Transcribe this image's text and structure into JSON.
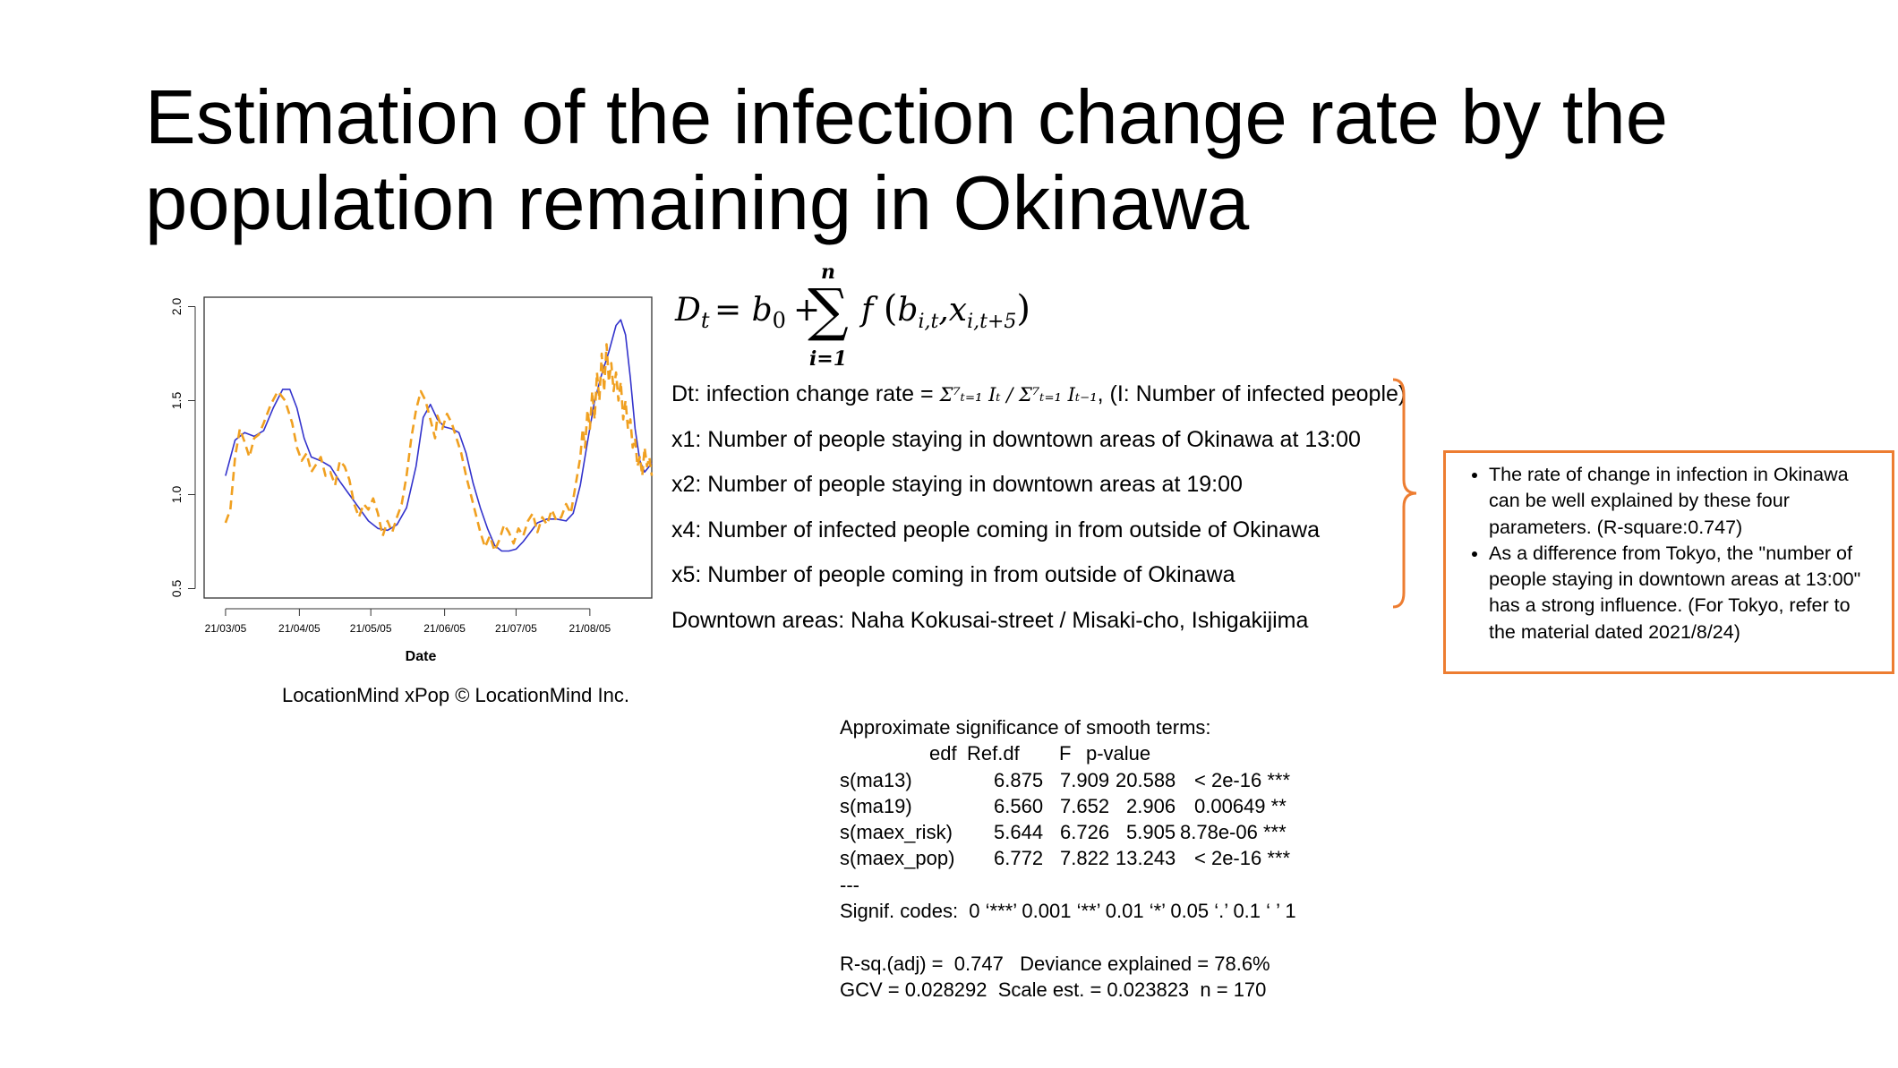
{
  "title": {
    "line1": "Estimation of the infection change rate by the",
    "line2": "population remaining in Okinawa"
  },
  "chart_data": {
    "type": "line",
    "xlabel": "Date",
    "ylabel": "",
    "x_ticks": [
      "21/03/05",
      "21/04/05",
      "21/05/05",
      "21/06/05",
      "21/07/05",
      "21/08/05"
    ],
    "y_ticks": [
      "0.5",
      "1.0",
      "1.5",
      "2.0"
    ],
    "ylim": [
      0.45,
      2.05
    ],
    "xlim": [
      "21/02/24",
      "21/08/31"
    ],
    "grid": false,
    "series": [
      {
        "style": "solid",
        "color": "#3333CC",
        "points": [
          [
            "21/03/05",
            1.1
          ],
          [
            "21/03/09",
            1.29
          ],
          [
            "21/03/13",
            1.33
          ],
          [
            "21/03/17",
            1.31
          ],
          [
            "21/03/21",
            1.34
          ],
          [
            "21/03/25",
            1.46
          ],
          [
            "21/03/29",
            1.56
          ],
          [
            "21/04/01",
            1.56
          ],
          [
            "21/04/04",
            1.46
          ],
          [
            "21/04/07",
            1.3
          ],
          [
            "21/04/10",
            1.2
          ],
          [
            "21/04/14",
            1.18
          ],
          [
            "21/04/18",
            1.15
          ],
          [
            "21/04/22",
            1.07
          ],
          [
            "21/04/26",
            1.0
          ],
          [
            "21/04/30",
            0.93
          ],
          [
            "21/05/04",
            0.86
          ],
          [
            "21/05/08",
            0.82
          ],
          [
            "21/05/12",
            0.81
          ],
          [
            "21/05/16",
            0.84
          ],
          [
            "21/05/20",
            0.93
          ],
          [
            "21/05/24",
            1.15
          ],
          [
            "21/05/27",
            1.41
          ],
          [
            "21/05/30",
            1.48
          ],
          [
            "21/06/02",
            1.4
          ],
          [
            "21/06/05",
            1.36
          ],
          [
            "21/06/08",
            1.35
          ],
          [
            "21/06/11",
            1.33
          ],
          [
            "21/06/14",
            1.22
          ],
          [
            "21/06/17",
            1.06
          ],
          [
            "21/06/20",
            0.93
          ],
          [
            "21/06/23",
            0.82
          ],
          [
            "21/06/26",
            0.73
          ],
          [
            "21/06/29",
            0.7
          ],
          [
            "21/07/02",
            0.7
          ],
          [
            "21/07/05",
            0.71
          ],
          [
            "21/07/08",
            0.75
          ],
          [
            "21/07/11",
            0.8
          ],
          [
            "21/07/14",
            0.85
          ],
          [
            "21/07/18",
            0.87
          ],
          [
            "21/07/22",
            0.87
          ],
          [
            "21/07/26",
            0.86
          ],
          [
            "21/07/29",
            0.9
          ],
          [
            "21/08/01",
            1.05
          ],
          [
            "21/08/04",
            1.28
          ],
          [
            "21/08/07",
            1.5
          ],
          [
            "21/08/10",
            1.64
          ],
          [
            "21/08/13",
            1.76
          ],
          [
            "21/08/16",
            1.9
          ],
          [
            "21/08/18",
            1.93
          ],
          [
            "21/08/20",
            1.85
          ],
          [
            "21/08/22",
            1.62
          ],
          [
            "21/08/24",
            1.35
          ],
          [
            "21/08/26",
            1.18
          ],
          [
            "21/08/28",
            1.12
          ],
          [
            "21/08/30",
            1.15
          ],
          [
            "21/08/31",
            1.17
          ]
        ]
      },
      {
        "style": "dashed",
        "color": "#F0A020",
        "points": [
          [
            "21/03/05",
            0.85
          ],
          [
            "21/03/07",
            0.92
          ],
          [
            "21/03/09",
            1.2
          ],
          [
            "21/03/11",
            1.35
          ],
          [
            "21/03/13",
            1.28
          ],
          [
            "21/03/15",
            1.2
          ],
          [
            "21/03/17",
            1.3
          ],
          [
            "21/03/19",
            1.32
          ],
          [
            "21/03/21",
            1.38
          ],
          [
            "21/03/24",
            1.48
          ],
          [
            "21/03/27",
            1.55
          ],
          [
            "21/03/30",
            1.5
          ],
          [
            "21/04/02",
            1.38
          ],
          [
            "21/04/04",
            1.25
          ],
          [
            "21/04/06",
            1.18
          ],
          [
            "21/04/08",
            1.22
          ],
          [
            "21/04/10",
            1.12
          ],
          [
            "21/04/12",
            1.16
          ],
          [
            "21/04/14",
            1.2
          ],
          [
            "21/04/16",
            1.1
          ],
          [
            "21/04/18",
            1.12
          ],
          [
            "21/04/20",
            1.05
          ],
          [
            "21/04/22",
            1.18
          ],
          [
            "21/04/24",
            1.15
          ],
          [
            "21/04/26",
            1.08
          ],
          [
            "21/04/28",
            0.95
          ],
          [
            "21/04/30",
            0.88
          ],
          [
            "21/05/02",
            0.95
          ],
          [
            "21/05/04",
            0.92
          ],
          [
            "21/05/06",
            0.98
          ],
          [
            "21/05/08",
            0.9
          ],
          [
            "21/05/10",
            0.78
          ],
          [
            "21/05/12",
            0.86
          ],
          [
            "21/05/14",
            0.8
          ],
          [
            "21/05/16",
            0.88
          ],
          [
            "21/05/18",
            0.95
          ],
          [
            "21/05/20",
            1.1
          ],
          [
            "21/05/22",
            1.3
          ],
          [
            "21/05/24",
            1.45
          ],
          [
            "21/05/26",
            1.55
          ],
          [
            "21/05/28",
            1.5
          ],
          [
            "21/05/30",
            1.4
          ],
          [
            "21/06/01",
            1.3
          ],
          [
            "21/06/02",
            1.42
          ],
          [
            "21/06/04",
            1.35
          ],
          [
            "21/06/06",
            1.43
          ],
          [
            "21/06/08",
            1.38
          ],
          [
            "21/06/10",
            1.3
          ],
          [
            "21/06/12",
            1.22
          ],
          [
            "21/06/14",
            1.1
          ],
          [
            "21/06/16",
            1.0
          ],
          [
            "21/06/18",
            0.9
          ],
          [
            "21/06/20",
            0.8
          ],
          [
            "21/06/22",
            0.72
          ],
          [
            "21/06/24",
            0.78
          ],
          [
            "21/06/26",
            0.7
          ],
          [
            "21/06/28",
            0.76
          ],
          [
            "21/06/30",
            0.84
          ],
          [
            "21/07/02",
            0.8
          ],
          [
            "21/07/04",
            0.74
          ],
          [
            "21/07/06",
            0.82
          ],
          [
            "21/07/08",
            0.78
          ],
          [
            "21/07/10",
            0.86
          ],
          [
            "21/07/12",
            0.9
          ],
          [
            "21/07/14",
            0.8
          ],
          [
            "21/07/16",
            0.88
          ],
          [
            "21/07/18",
            0.84
          ],
          [
            "21/07/20",
            0.92
          ],
          [
            "21/07/22",
            0.86
          ],
          [
            "21/07/24",
            0.88
          ],
          [
            "21/07/26",
            0.95
          ],
          [
            "21/07/28",
            0.9
          ],
          [
            "21/07/30",
            1.05
          ],
          [
            "21/08/01",
            1.2
          ],
          [
            "21/08/02",
            1.35
          ],
          [
            "21/08/03",
            1.25
          ],
          [
            "21/08/04",
            1.45
          ],
          [
            "21/08/05",
            1.35
          ],
          [
            "21/08/06",
            1.55
          ],
          [
            "21/08/07",
            1.4
          ],
          [
            "21/08/08",
            1.65
          ],
          [
            "21/08/09",
            1.5
          ],
          [
            "21/08/10",
            1.75
          ],
          [
            "21/08/11",
            1.55
          ],
          [
            "21/08/12",
            1.8
          ],
          [
            "21/08/13",
            1.6
          ],
          [
            "21/08/14",
            1.7
          ],
          [
            "21/08/15",
            1.55
          ],
          [
            "21/08/16",
            1.65
          ],
          [
            "21/08/17",
            1.5
          ],
          [
            "21/08/18",
            1.6
          ],
          [
            "21/08/19",
            1.4
          ],
          [
            "21/08/20",
            1.5
          ],
          [
            "21/08/21",
            1.35
          ],
          [
            "21/08/22",
            1.4
          ],
          [
            "21/08/23",
            1.25
          ],
          [
            "21/08/24",
            1.3
          ],
          [
            "21/08/25",
            1.15
          ],
          [
            "21/08/26",
            1.2
          ],
          [
            "21/08/27",
            1.1
          ],
          [
            "21/08/28",
            1.25
          ],
          [
            "21/08/29",
            1.15
          ],
          [
            "21/08/30",
            1.2
          ],
          [
            "21/08/31",
            1.1
          ]
        ]
      }
    ]
  },
  "credit": "LocationMind xPop © LocationMind Inc.",
  "formula": {
    "lhs": "D",
    "lhs_sub": "t",
    "eq": "= b",
    "b_sub": "0",
    "plus": "+",
    "sum_top": "n",
    "sum_bottom": "i=1",
    "func": "f",
    "arg1": "b",
    "arg1_sub": "i,t",
    "comma": ",",
    "arg2": "x",
    "arg2_sub": "i,t+5"
  },
  "vars": {
    "dt_prefix": "Dt: infection change rate = ",
    "dt_inline": "Σ⁷ₜ₌₁ Iₜ / Σ⁷ₜ₌₁ Iₜ₋₁",
    "dt_suffix": ", (I: Number of infected people)",
    "x1": "x1: Number of people staying in downtown areas of Okinawa at 13:00",
    "x2": "x2: Number of people staying in downtown areas at 19:00",
    "x4": "x4: Number of infected people coming in from outside of Okinawa",
    "x5": "x5: Number of people coming in from outside of Okinawa",
    "downtown": "Downtown areas: Naha Kokusai-street / Misaki-cho, Ishigakijima"
  },
  "callout": {
    "bullet1": "The rate of change in infection in Okinawa can be well explained by these four parameters. (R-square:0.747)",
    "bullet2": "As a difference from Tokyo, the \"number of people staying in downtown areas at 13:00\" has a strong influence. (For Tokyo, refer to the material dated 2021/8/24)"
  },
  "stats": {
    "heading": "Approximate significance of smooth terms:",
    "columns": [
      "edf",
      "Ref.df",
      "F",
      "p-value"
    ],
    "rows": [
      {
        "term": "s(ma13)",
        "edf": "6.875",
        "refdf": "7.909",
        "f": "20.588",
        "p": "< 2e-16 ***"
      },
      {
        "term": "s(ma19)",
        "edf": "6.560",
        "refdf": "7.652",
        "f": "2.906",
        "p": "0.00649 **"
      },
      {
        "term": "s(maex_risk)",
        "edf": "5.644",
        "refdf": "6.726",
        "f": "5.905",
        "p": "8.78e-06 ***"
      },
      {
        "term": "s(maex_pop)",
        "edf": "6.772",
        "refdf": "7.822",
        "f": "13.243",
        "p": "< 2e-16 ***"
      }
    ],
    "separator": "---",
    "signif": "Signif. codes:  0 ‘***’ 0.001 ‘**’ 0.01 ‘*’ 0.05 ‘.’ 0.1 ‘ ’ 1",
    "rsq": "R-sq.(adj) =  0.747   Deviance explained = 78.6%",
    "gcv": "GCV = 0.028292  Scale est. = 0.023823  n = 170"
  },
  "colors": {
    "accent": "#ED7D31",
    "fitted_line": "#3333CC",
    "observed_line": "#F0A020"
  }
}
